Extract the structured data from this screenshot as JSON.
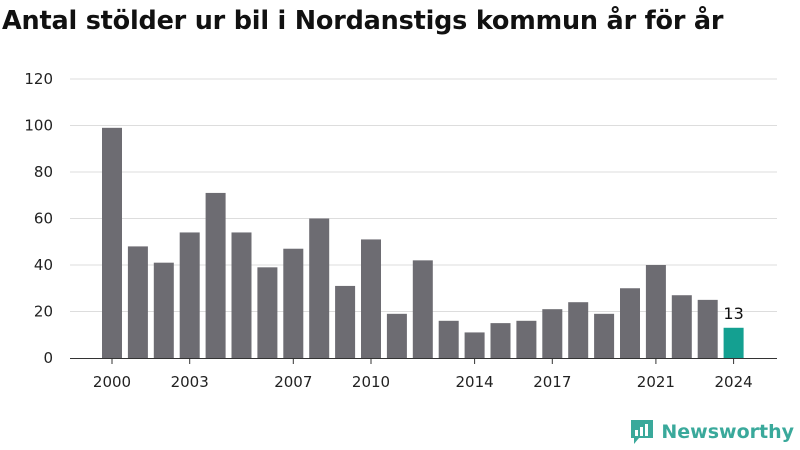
{
  "chart_data": {
    "type": "bar",
    "title": "Antal stölder ur bil i Nordanstigs kommun år för år",
    "xlabel": "",
    "ylabel": "",
    "categories": [
      2000,
      2001,
      2002,
      2003,
      2004,
      2005,
      2006,
      2007,
      2008,
      2009,
      2010,
      2011,
      2012,
      2013,
      2014,
      2015,
      2016,
      2017,
      2018,
      2019,
      2020,
      2021,
      2022,
      2023,
      2024
    ],
    "values": [
      99,
      48,
      41,
      54,
      71,
      54,
      39,
      47,
      60,
      31,
      51,
      19,
      42,
      16,
      11,
      15,
      16,
      21,
      24,
      19,
      30,
      40,
      27,
      25,
      13
    ],
    "ylim": [
      0,
      120
    ],
    "yticks": [
      0,
      20,
      40,
      60,
      80,
      100,
      120
    ],
    "xtick_labels": [
      2000,
      2003,
      2007,
      2010,
      2014,
      2017,
      2021,
      2024
    ],
    "highlight_index": 24,
    "data_labels": [
      {
        "index": 24,
        "text": "13"
      }
    ],
    "grid": true,
    "colors": {
      "bar": "#6d6c72",
      "highlight": "#14a091",
      "grid": "#dddddd"
    }
  },
  "brand": {
    "name": "Newsworthy",
    "icon": "newsworthy-logo-icon",
    "color": "#3aa99b"
  }
}
